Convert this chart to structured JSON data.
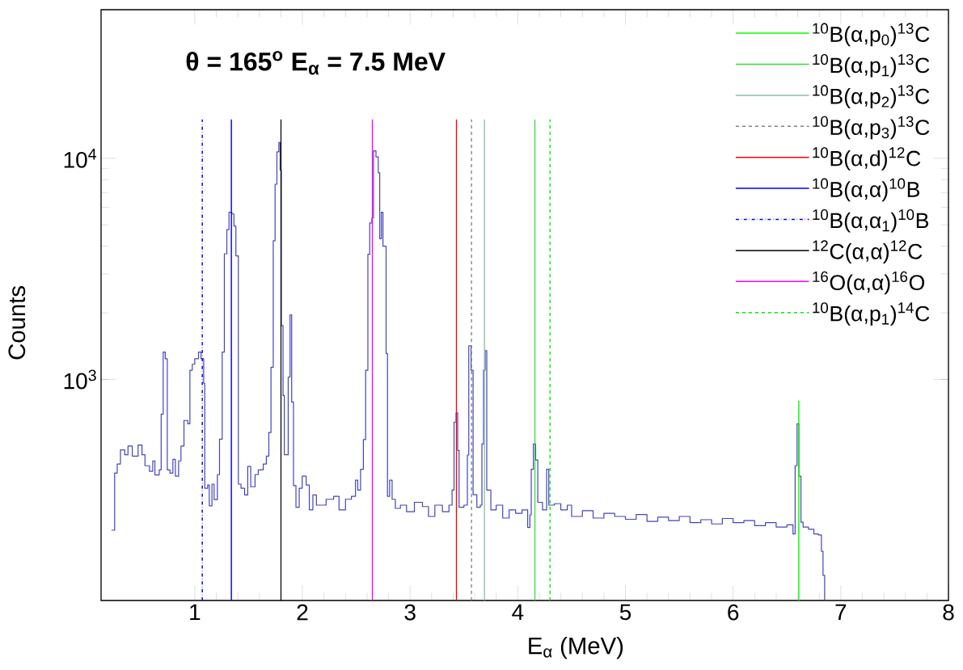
{
  "chart_data": {
    "type": "step",
    "annotations": [
      "θ = 165$^{o}$  E$_{α}$ = 7.5 MeV"
    ],
    "xlabel": "E$_{α}$ (MeV)",
    "ylabel": "Counts",
    "xlim": [
      0.13,
      8
    ],
    "ylim": [
      100,
      47000
    ],
    "log": "y",
    "xticks": [
      1,
      2,
      3,
      4,
      5,
      6,
      7,
      8
    ],
    "yticks": [
      {
        "value": 1000,
        "label": "10$^{3}$"
      },
      {
        "value": 10000,
        "label": "10$^{4}$"
      }
    ],
    "legend": "top right",
    "series": [
      {
        "color": "#4444bb",
        "x": [
          0.226,
          0.256,
          0.28,
          0.31,
          0.35,
          0.38,
          0.42,
          0.474,
          0.51,
          0.538,
          0.58,
          0.61,
          0.63,
          0.67,
          0.688,
          0.707,
          0.726,
          0.745,
          0.77,
          0.797,
          0.82,
          0.85,
          0.872,
          0.9,
          0.935,
          0.955,
          0.977,
          1.0,
          1.035,
          1.058,
          1.083,
          1.093,
          1.12,
          1.135,
          1.16,
          1.18,
          1.21,
          1.23,
          1.255,
          1.275,
          1.298,
          1.318,
          1.345,
          1.364,
          1.382,
          1.405,
          1.43,
          1.463,
          1.492,
          1.52,
          1.56,
          1.59,
          1.636,
          1.665,
          1.688,
          1.708,
          1.729,
          1.746,
          1.763,
          1.781,
          1.793,
          1.804,
          1.82,
          1.832,
          1.868,
          1.885,
          1.9,
          1.917,
          1.94,
          1.97,
          1.998,
          2.035,
          2.064,
          2.097,
          2.13,
          2.22,
          2.29,
          2.34,
          2.4,
          2.455,
          2.493,
          2.514,
          2.54,
          2.566,
          2.587,
          2.608,
          2.625,
          2.645,
          2.66,
          2.683,
          2.704,
          2.718,
          2.733,
          2.748,
          2.777,
          2.79,
          2.81,
          2.833,
          2.863,
          2.91,
          2.967,
          3.04,
          3.115,
          3.171,
          3.23,
          3.3,
          3.361,
          3.39,
          3.408,
          3.427,
          3.442,
          3.455,
          3.5,
          3.532,
          3.545,
          3.566,
          3.585,
          3.62,
          3.652,
          3.667,
          3.682,
          3.697,
          3.712,
          3.75,
          3.8,
          3.86,
          3.92,
          3.98,
          4.04,
          4.092,
          4.113,
          4.125,
          4.145,
          4.166,
          4.186,
          4.23,
          4.268,
          4.288,
          4.34,
          4.4,
          4.46,
          4.5,
          4.6,
          4.7,
          4.8,
          4.9,
          5.0,
          5.1,
          5.2,
          5.3,
          5.4,
          5.5,
          5.6,
          5.7,
          5.8,
          5.9,
          6.0,
          6.1,
          6.2,
          6.3,
          6.4,
          6.5,
          6.556,
          6.576,
          6.594,
          6.611,
          6.63,
          6.65,
          6.7,
          6.75,
          6.79,
          6.82,
          6.835,
          6.85
        ],
        "values": [
          208,
          377,
          414,
          480,
          456,
          500,
          450,
          505,
          456,
          407,
          384,
          428,
          370,
          390,
          697,
          1330,
          1240,
          390,
          377,
          435,
          365,
          428,
          500,
          652,
          630,
          1100,
          1170,
          1240,
          1330,
          1240,
          960,
          322,
          333,
          268,
          336,
          286,
          371,
          537,
          1330,
          3700,
          4760,
          5700,
          5600,
          4930,
          3620,
          336,
          322,
          300,
          404,
          327,
          371,
          390,
          414,
          450,
          575,
          1135,
          4240,
          7630,
          10700,
          11800,
          8840,
          1750,
          845,
          456,
          1025,
          1960,
          790,
          331,
          264,
          322,
          365,
          333,
          257,
          300,
          270,
          287,
          296,
          257,
          287,
          296,
          350,
          316,
          392,
          534,
          1100,
          3680,
          5100,
          5370,
          10800,
          10150,
          8600,
          4330,
          5700,
          4000,
          1310,
          296,
          350,
          287,
          261,
          270,
          252,
          278,
          266,
          240,
          270,
          252,
          270,
          316,
          641,
          705,
          477,
          264,
          270,
          455,
          1420,
          1100,
          301,
          264,
          270,
          510,
          1100,
          1350,
          316,
          257,
          270,
          236,
          257,
          248,
          257,
          214,
          244,
          392,
          510,
          432,
          278,
          257,
          392,
          270,
          274,
          257,
          270,
          240,
          255,
          236,
          248,
          240,
          233,
          245,
          228,
          238,
          230,
          240,
          225,
          232,
          222,
          235,
          225,
          230,
          218,
          225,
          215,
          220,
          200,
          407,
          630,
          365,
          226,
          215,
          210,
          200,
          198,
          167,
          130,
          100
        ]
      },
      {
        "type": "line",
        "name": "$^{10}$B(α,p$_{0}$)$^{13}$C",
        "color": "#00ff00",
        "line_style": "solid",
        "x": [
          6.61,
          6.61
        ],
        "values": [
          100,
          800
        ]
      },
      {
        "type": "line",
        "name": "$^{10}$B(α,p$_{1}$)$^{13}$C",
        "color": "#33dd33",
        "line_style": "solid",
        "x": [
          4.16,
          4.16
        ],
        "values": [
          100,
          15000
        ]
      },
      {
        "type": "line",
        "name": "$^{10}$B(α,p$_{2}$)$^{13}$C",
        "color": "#88c0a0",
        "line_style": "solid",
        "x": [
          3.69,
          3.69
        ],
        "values": [
          100,
          15000
        ]
      },
      {
        "type": "line",
        "name": "$^{10}$B(α,p$_{3}$)$^{13}$C",
        "color": "#778877",
        "line_style": "dashed",
        "x": [
          3.57,
          3.57
        ],
        "values": [
          100,
          15000
        ]
      },
      {
        "type": "line",
        "name": "$^{10}$B(α,d)$^{12}$C",
        "color": "#ff0000",
        "line_style": "solid",
        "x": [
          3.43,
          3.43
        ],
        "values": [
          100,
          15000
        ]
      },
      {
        "type": "line",
        "name": "$^{10}$B(α,α)$^{10}$B",
        "color": "#0000ff",
        "line_style": "solid",
        "x": [
          1.34,
          1.34
        ],
        "values": [
          100,
          15000
        ]
      },
      {
        "type": "line",
        "name": "$^{10}$B(α,α$_{1}$)$^{10}$B",
        "color": "#0000ff",
        "line_style": "dashdot",
        "x": [
          1.07,
          1.07
        ],
        "values": [
          100,
          15000
        ]
      },
      {
        "type": "line",
        "name": "$^{12}$C(α,α)$^{12}$C",
        "color": "#000000",
        "line_style": "solid",
        "x": [
          1.8,
          1.8
        ],
        "values": [
          100,
          15000
        ]
      },
      {
        "type": "line",
        "name": "$^{16}$O(α,α)$^{16}$O",
        "color": "#ff00ff",
        "line_style": "solid",
        "x": [
          2.65,
          2.65
        ],
        "values": [
          100,
          15000
        ]
      },
      {
        "type": "line",
        "name": "$^{10}$B(α,p$_{1}$)$^{14}$C",
        "color": "#00ee00",
        "line_style": "dashed",
        "x": [
          4.3,
          4.3
        ],
        "values": [
          100,
          15000
        ]
      }
    ]
  }
}
